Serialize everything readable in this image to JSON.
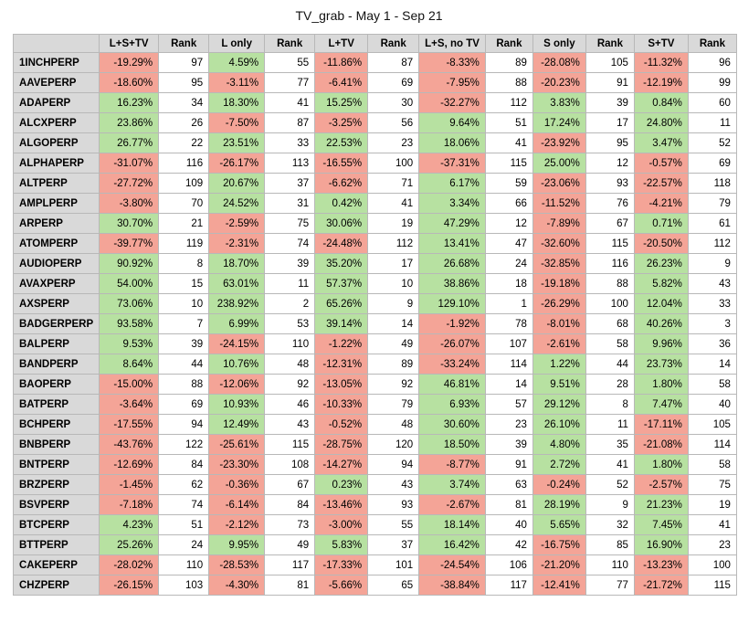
{
  "title": "TV_grab - May 1 - Sep 21",
  "header": [
    "L+S+TV",
    "Rank",
    "L only",
    "Rank",
    "L+TV",
    "Rank",
    "L+S, no TV",
    "Rank",
    "S only",
    "Rank",
    "S+TV",
    "Rank"
  ],
  "rows": [
    [
      "1INCHPERP",
      "-19.29%",
      97,
      "4.59%",
      55,
      "-11.86%",
      87,
      "-8.33%",
      89,
      "-28.08%",
      105,
      "-11.32%",
      96
    ],
    [
      "AAVEPERP",
      "-18.60%",
      95,
      "-3.11%",
      77,
      "-6.41%",
      69,
      "-7.95%",
      88,
      "-20.23%",
      91,
      "-12.19%",
      99
    ],
    [
      "ADAPERP",
      "16.23%",
      34,
      "18.30%",
      41,
      "15.25%",
      30,
      "-32.27%",
      112,
      "3.83%",
      39,
      "0.84%",
      60
    ],
    [
      "ALCXPERP",
      "23.86%",
      26,
      "-7.50%",
      87,
      "-3.25%",
      56,
      "9.64%",
      51,
      "17.24%",
      17,
      "24.80%",
      11
    ],
    [
      "ALGOPERP",
      "26.77%",
      22,
      "23.51%",
      33,
      "22.53%",
      23,
      "18.06%",
      41,
      "-23.92%",
      95,
      "3.47%",
      52
    ],
    [
      "ALPHAPERP",
      "-31.07%",
      116,
      "-26.17%",
      113,
      "-16.55%",
      100,
      "-37.31%",
      115,
      "25.00%",
      12,
      "-0.57%",
      69
    ],
    [
      "ALTPERP",
      "-27.72%",
      109,
      "20.67%",
      37,
      "-6.62%",
      71,
      "6.17%",
      59,
      "-23.06%",
      93,
      "-22.57%",
      118
    ],
    [
      "AMPLPERP",
      "-3.80%",
      70,
      "24.52%",
      31,
      "0.42%",
      41,
      "3.34%",
      66,
      "-11.52%",
      76,
      "-4.21%",
      79
    ],
    [
      "ARPERP",
      "30.70%",
      21,
      "-2.59%",
      75,
      "30.06%",
      19,
      "47.29%",
      12,
      "-7.89%",
      67,
      "0.71%",
      61
    ],
    [
      "ATOMPERP",
      "-39.77%",
      119,
      "-2.31%",
      74,
      "-24.48%",
      112,
      "13.41%",
      47,
      "-32.60%",
      115,
      "-20.50%",
      112
    ],
    [
      "AUDIOPERP",
      "90.92%",
      8,
      "18.70%",
      39,
      "35.20%",
      17,
      "26.68%",
      24,
      "-32.85%",
      116,
      "26.23%",
      9
    ],
    [
      "AVAXPERP",
      "54.00%",
      15,
      "63.01%",
      11,
      "57.37%",
      10,
      "38.86%",
      18,
      "-19.18%",
      88,
      "5.82%",
      43
    ],
    [
      "AXSPERP",
      "73.06%",
      10,
      "238.92%",
      2,
      "65.26%",
      9,
      "129.10%",
      1,
      "-26.29%",
      100,
      "12.04%",
      33
    ],
    [
      "BADGERPERP",
      "93.58%",
      7,
      "6.99%",
      53,
      "39.14%",
      14,
      "-1.92%",
      78,
      "-8.01%",
      68,
      "40.26%",
      3
    ],
    [
      "BALPERP",
      "9.53%",
      39,
      "-24.15%",
      110,
      "-1.22%",
      49,
      "-26.07%",
      107,
      "-2.61%",
      58,
      "9.96%",
      36
    ],
    [
      "BANDPERP",
      "8.64%",
      44,
      "10.76%",
      48,
      "-12.31%",
      89,
      "-33.24%",
      114,
      "1.22%",
      44,
      "23.73%",
      14
    ],
    [
      "BAOPERP",
      "-15.00%",
      88,
      "-12.06%",
      92,
      "-13.05%",
      92,
      "46.81%",
      14,
      "9.51%",
      28,
      "1.80%",
      58
    ],
    [
      "BATPERP",
      "-3.64%",
      69,
      "10.93%",
      46,
      "-10.33%",
      79,
      "6.93%",
      57,
      "29.12%",
      8,
      "7.47%",
      40
    ],
    [
      "BCHPERP",
      "-17.55%",
      94,
      "12.49%",
      43,
      "-0.52%",
      48,
      "30.60%",
      23,
      "26.10%",
      11,
      "-17.11%",
      105
    ],
    [
      "BNBPERP",
      "-43.76%",
      122,
      "-25.61%",
      115,
      "-28.75%",
      120,
      "18.50%",
      39,
      "4.80%",
      35,
      "-21.08%",
      114
    ],
    [
      "BNTPERP",
      "-12.69%",
      84,
      "-23.30%",
      108,
      "-14.27%",
      94,
      "-8.77%",
      91,
      "2.72%",
      41,
      "1.80%",
      58
    ],
    [
      "BRZPERP",
      "-1.45%",
      62,
      "-0.36%",
      67,
      "0.23%",
      43,
      "3.74%",
      63,
      "-0.24%",
      52,
      "-2.57%",
      75
    ],
    [
      "BSVPERP",
      "-7.18%",
      74,
      "-6.14%",
      84,
      "-13.46%",
      93,
      "-2.67%",
      81,
      "28.19%",
      9,
      "21.23%",
      19
    ],
    [
      "BTCPERP",
      "4.23%",
      51,
      "-2.12%",
      73,
      "-3.00%",
      55,
      "18.14%",
      40,
      "5.65%",
      32,
      "7.45%",
      41
    ],
    [
      "BTTPERP",
      "25.26%",
      24,
      "9.95%",
      49,
      "5.83%",
      37,
      "16.42%",
      42,
      "-16.75%",
      85,
      "16.90%",
      23
    ],
    [
      "CAKEPERP",
      "-28.02%",
      110,
      "-28.53%",
      117,
      "-17.33%",
      101,
      "-24.54%",
      106,
      "-21.20%",
      110,
      "-13.23%",
      100
    ],
    [
      "CHZPERP",
      "-26.15%",
      103,
      "-4.30%",
      81,
      "-5.66%",
      65,
      "-38.84%",
      117,
      "-12.41%",
      77,
      "-21.72%",
      115
    ]
  ]
}
